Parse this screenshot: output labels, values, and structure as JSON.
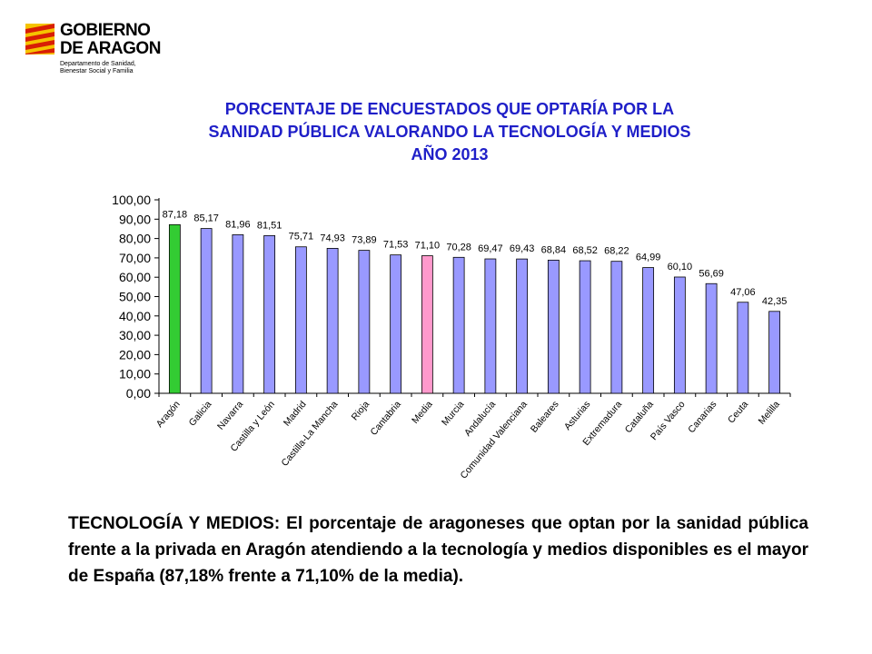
{
  "logo": {
    "line1": "GOBIERNO",
    "line2": "DE ARAGON",
    "sub1": "Departamento de Sanidad,",
    "sub2": "Bienestar Social y Familia"
  },
  "chart_data": {
    "type": "bar",
    "title_lines": [
      "PORCENTAJE DE ENCUESTADOS QUE OPTARÍA POR LA",
      "SANIDAD PÚBLICA VALORANDO LA TECNOLOGÍA Y MEDIOS",
      "AÑO 2013"
    ],
    "categories": [
      "Aragón",
      "Galicia",
      "Navarra",
      "Castilla y León",
      "Madrid",
      "Castilla-La Mancha",
      "Rioja",
      "Cantabria",
      "Media",
      "Murcia",
      "Andalucía",
      "Comunidad Valenciana",
      "Baleares",
      "Asturias",
      "Extremadura",
      "Cataluña",
      "País Vasco",
      "Canarias",
      "Ceuta",
      "Melilla"
    ],
    "values": [
      87.18,
      85.17,
      81.96,
      81.51,
      75.71,
      74.93,
      73.89,
      71.53,
      71.1,
      70.28,
      69.47,
      69.43,
      68.84,
      68.52,
      68.22,
      64.99,
      60.1,
      56.69,
      47.06,
      42.35
    ],
    "value_labels": [
      "87,18",
      "85,17",
      "81,96",
      "81,51",
      "75,71",
      "74,93",
      "73,89",
      "71,53",
      "71,10",
      "70,28",
      "69,47",
      "69,43",
      "68,84",
      "68,52",
      "68,22",
      "64,99",
      "60,10",
      "56,69",
      "47,06",
      "42,35"
    ],
    "yticks": [
      "0,00",
      "10,00",
      "20,00",
      "30,00",
      "40,00",
      "50,00",
      "60,00",
      "70,00",
      "80,00",
      "90,00",
      "100,00"
    ],
    "ylim": [
      0,
      100
    ],
    "grid": false,
    "colors": {
      "default": "#9999ff",
      "highlight_aragon": "#33cc33",
      "highlight_media": "#ff99cc",
      "outline": "#000000"
    }
  },
  "caption": "TECNOLOGÍA Y MEDIOS: El porcentaje de aragoneses que optan por la sanidad pública frente a la privada en Aragón atendiendo a la tecnología y medios disponibles es el mayor de España (87,18% frente a 71,10% de la media)."
}
